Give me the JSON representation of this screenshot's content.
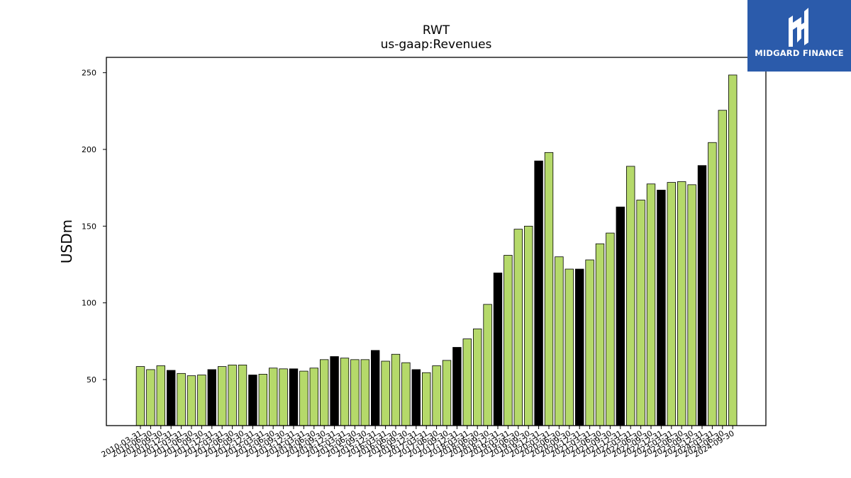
{
  "colors": {
    "bar_default": "#b5d96a",
    "bar_highlight": "#000000",
    "bar_edge": "#000000",
    "logo_bg": "#2b5bab"
  },
  "logo": {
    "text": "MIDGARD FINANCE",
    "icon": "midgard-logo-icon"
  },
  "chart_data": {
    "type": "bar",
    "title": "RWT",
    "subtitle": "us-gaap:Revenues",
    "xlabel": "",
    "ylabel": "USDm",
    "ylim": [
      20,
      260
    ],
    "yticks": [
      50,
      100,
      150,
      200,
      250
    ],
    "grid": false,
    "categories": [
      "2010-03-31",
      "2010-06-30",
      "2010-09-30",
      "2010-12-31",
      "2011-03-31",
      "2011-06-30",
      "2011-09-30",
      "2011-12-31",
      "2012-03-31",
      "2012-06-30",
      "2012-09-30",
      "2012-12-31",
      "2013-03-31",
      "2013-06-30",
      "2013-09-30",
      "2013-12-31",
      "2014-03-31",
      "2014-06-30",
      "2014-09-30",
      "2014-12-31",
      "2015-03-31",
      "2015-06-30",
      "2015-09-30",
      "2015-12-31",
      "2016-03-31",
      "2016-06-30",
      "2016-09-30",
      "2016-12-31",
      "2017-03-31",
      "2017-06-30",
      "2017-09-30",
      "2017-12-31",
      "2018-03-31",
      "2018-06-30",
      "2018-09-30",
      "2018-12-31",
      "2019-03-31",
      "2019-06-30",
      "2019-09-30",
      "2019-12-31",
      "2020-03-31",
      "2020-06-30",
      "2020-09-30",
      "2020-12-31",
      "2021-03-31",
      "2021-06-30",
      "2021-09-30",
      "2021-12-31",
      "2022-03-31",
      "2022-06-30",
      "2022-09-30",
      "2022-12-31",
      "2023-03-31",
      "2023-06-30",
      "2023-09-30",
      "2023-12-31",
      "2024-03-31",
      "2024-06-30",
      "2024-09-30"
    ],
    "values": [
      58.5,
      56.5,
      59,
      56,
      54,
      52.5,
      53,
      56.5,
      58.5,
      59.5,
      59.5,
      53,
      53.5,
      57.5,
      57,
      57,
      55.5,
      57.5,
      63,
      65,
      64,
      63,
      63,
      69,
      62,
      66.5,
      61,
      56.5,
      54.5,
      59,
      62.5,
      71,
      76.5,
      83,
      99,
      119.5,
      131,
      148,
      150,
      192.5,
      198,
      130,
      122,
      122,
      128,
      138.5,
      145.5,
      162.5,
      189,
      167,
      177.5,
      173.5,
      178.5,
      179,
      177,
      189.5,
      204.5,
      225.5,
      248.5
    ],
    "highlight": [
      false,
      false,
      false,
      true,
      false,
      false,
      false,
      true,
      false,
      false,
      false,
      true,
      false,
      false,
      false,
      true,
      false,
      false,
      false,
      true,
      false,
      false,
      false,
      true,
      false,
      false,
      false,
      true,
      false,
      false,
      false,
      true,
      false,
      false,
      false,
      true,
      false,
      false,
      false,
      true,
      false,
      false,
      false,
      true,
      false,
      false,
      false,
      true,
      false,
      false,
      false,
      true,
      false,
      false,
      false,
      true,
      false,
      false,
      false
    ]
  }
}
